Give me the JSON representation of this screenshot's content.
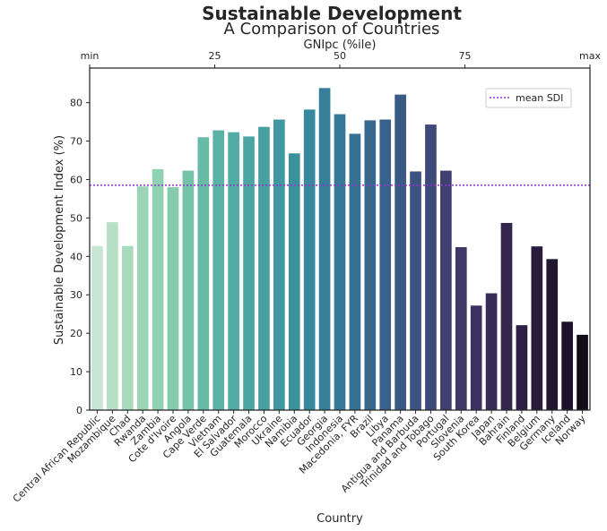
{
  "chart_data": {
    "type": "bar",
    "title": "Sustainable Development",
    "subtitle": "A Comparison of Countries",
    "xlabel": "Country",
    "ylabel": "Sustainable Development Index (%)",
    "ylim": [
      0,
      89
    ],
    "yticks": [
      0,
      10,
      20,
      30,
      40,
      50,
      60,
      70,
      80
    ],
    "top_axis": {
      "label": "GNIpc (%ile)",
      "range": [
        0,
        100
      ],
      "ticks": [
        {
          "value": 0,
          "label": "min"
        },
        {
          "value": 25,
          "label": "25"
        },
        {
          "value": 50,
          "label": "50"
        },
        {
          "value": 75,
          "label": "75"
        },
        {
          "value": 100,
          "label": "max"
        }
      ]
    },
    "mean_line": {
      "label": "mean SDI",
      "value": 58.5,
      "color": "#9932cc"
    },
    "legend_position": "top-right",
    "grid": false,
    "categories": [
      "Central African Republic",
      "Mozambique",
      "Chad",
      "Rwanda",
      "Zambia",
      "Cote d'Ivoire",
      "Angola",
      "Cape Verde",
      "Vietnam",
      "El Salvador",
      "Guatemala",
      "Morocco",
      "Ukraine",
      "Namibia",
      "Ecuador",
      "Georgia",
      "Indonesia",
      "Macedonia, FYR",
      "Brazil",
      "Libya",
      "Panama",
      "Antigua and Barbuda",
      "Trinidad and Tobago",
      "Portugal",
      "Slovenia",
      "South Korea",
      "Japan",
      "Bahrain",
      "Finland",
      "Belgium",
      "Germany",
      "Iceland",
      "Norway"
    ],
    "values": [
      42.7,
      48.9,
      42.7,
      58.2,
      62.7,
      58.0,
      62.3,
      71.0,
      72.8,
      72.3,
      71.2,
      73.7,
      75.6,
      66.8,
      78.2,
      83.8,
      77.0,
      71.9,
      75.4,
      75.6,
      82.1,
      62.1,
      74.3,
      62.3,
      42.4,
      27.2,
      30.4,
      48.7,
      22.1,
      42.6,
      39.3,
      23.0,
      19.6
    ],
    "colors": [
      "#c7e6d3",
      "#b6dfc6",
      "#a8dabd",
      "#9cd5b6",
      "#8fd1b0",
      "#84ccab",
      "#74c3a8",
      "#66bba7",
      "#5ab2a6",
      "#52aba5",
      "#4ca4a3",
      "#46a0a2",
      "#3f97a0",
      "#3b909e",
      "#37889c",
      "#357f9a",
      "#357897",
      "#367093",
      "#37698f",
      "#38628b",
      "#3a5a86",
      "#3c5281",
      "#3e4a79",
      "#404070",
      "#403867",
      "#3d3160",
      "#392b58",
      "#34264f",
      "#2f1f45",
      "#291b3c",
      "#231633",
      "#1c1129",
      "#150c19"
    ]
  }
}
